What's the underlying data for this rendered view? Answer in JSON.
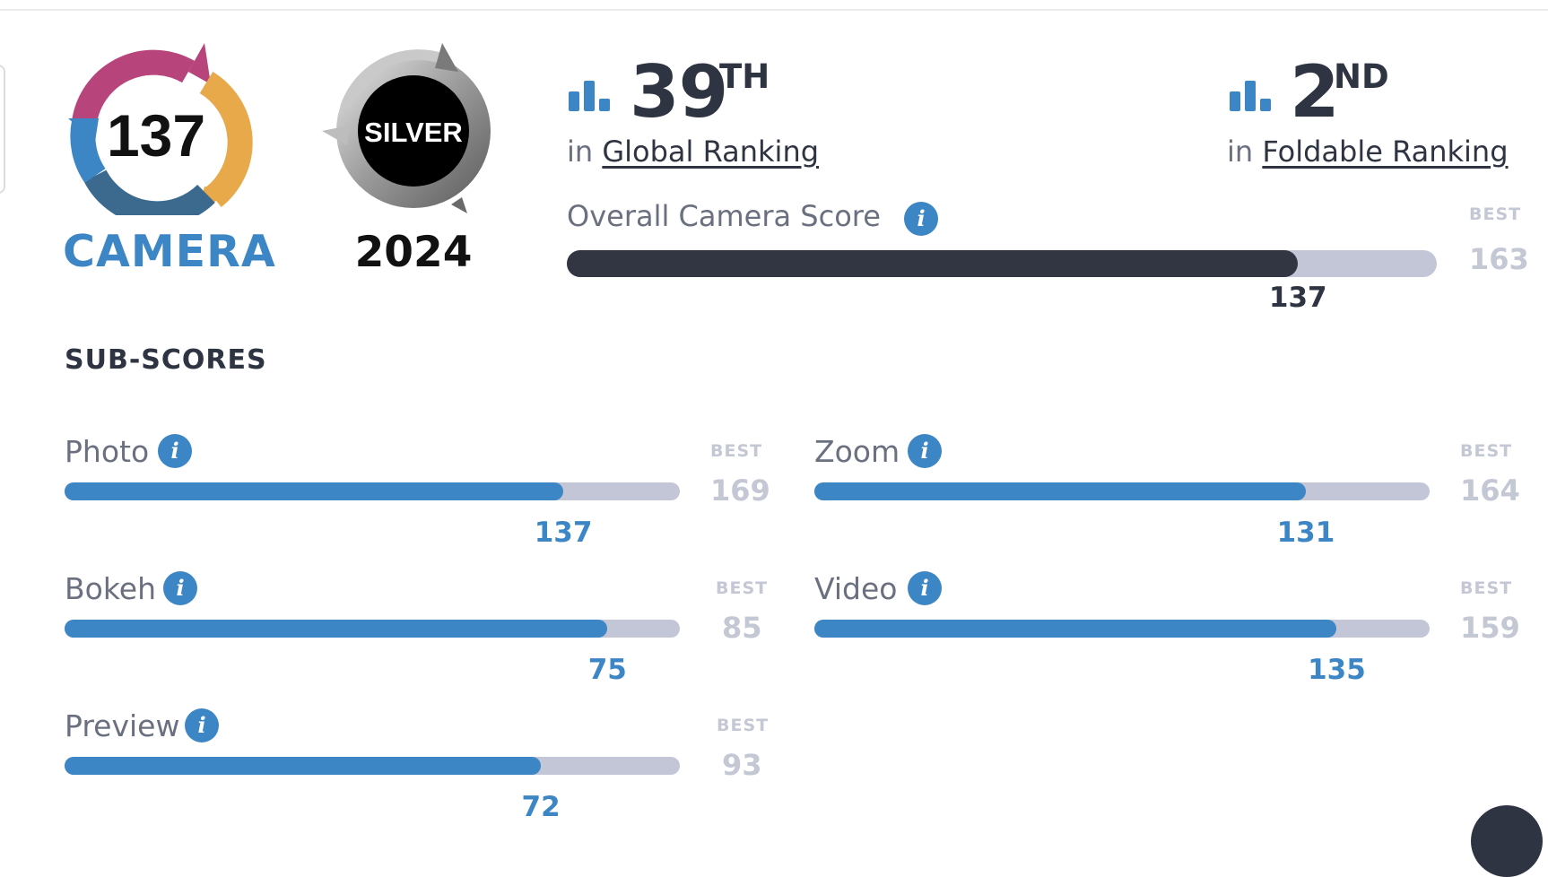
{
  "badge": {
    "score": "137",
    "category": "CAMERA",
    "award": "SILVER",
    "year": "2024"
  },
  "rankings": [
    {
      "number": "39",
      "suffix": "TH",
      "prefix": "in",
      "link": "Global Ranking"
    },
    {
      "number": "2",
      "suffix": "ND",
      "prefix": "in",
      "link": "Foldable Ranking"
    }
  ],
  "overall": {
    "label": "Overall Camera Score",
    "best_label": "BEST",
    "best": "163",
    "score": "137",
    "fraction": 0.8405
  },
  "subscores_title": "SUB-SCORES",
  "subscores": [
    {
      "label": "Photo",
      "best_label": "BEST",
      "best": "169",
      "score": "137",
      "fraction": 0.8106
    },
    {
      "label": "Zoom",
      "best_label": "BEST",
      "best": "164",
      "score": "131",
      "fraction": 0.7988
    },
    {
      "label": "Bokeh",
      "best_label": "BEST",
      "best": "85",
      "score": "75",
      "fraction": 0.8824
    },
    {
      "label": "Video",
      "best_label": "BEST",
      "best": "159",
      "score": "135",
      "fraction": 0.8491
    },
    {
      "label": "Preview",
      "best_label": "BEST",
      "best": "93",
      "score": "72",
      "fraction": 0.7742
    }
  ],
  "colors": {
    "accent": "#3d86c6",
    "dark": "#323643",
    "track": "#c3c6d7",
    "muted": "#c4c7d4"
  },
  "icons": [
    "info-icon",
    "ranking-bars-icon"
  ]
}
